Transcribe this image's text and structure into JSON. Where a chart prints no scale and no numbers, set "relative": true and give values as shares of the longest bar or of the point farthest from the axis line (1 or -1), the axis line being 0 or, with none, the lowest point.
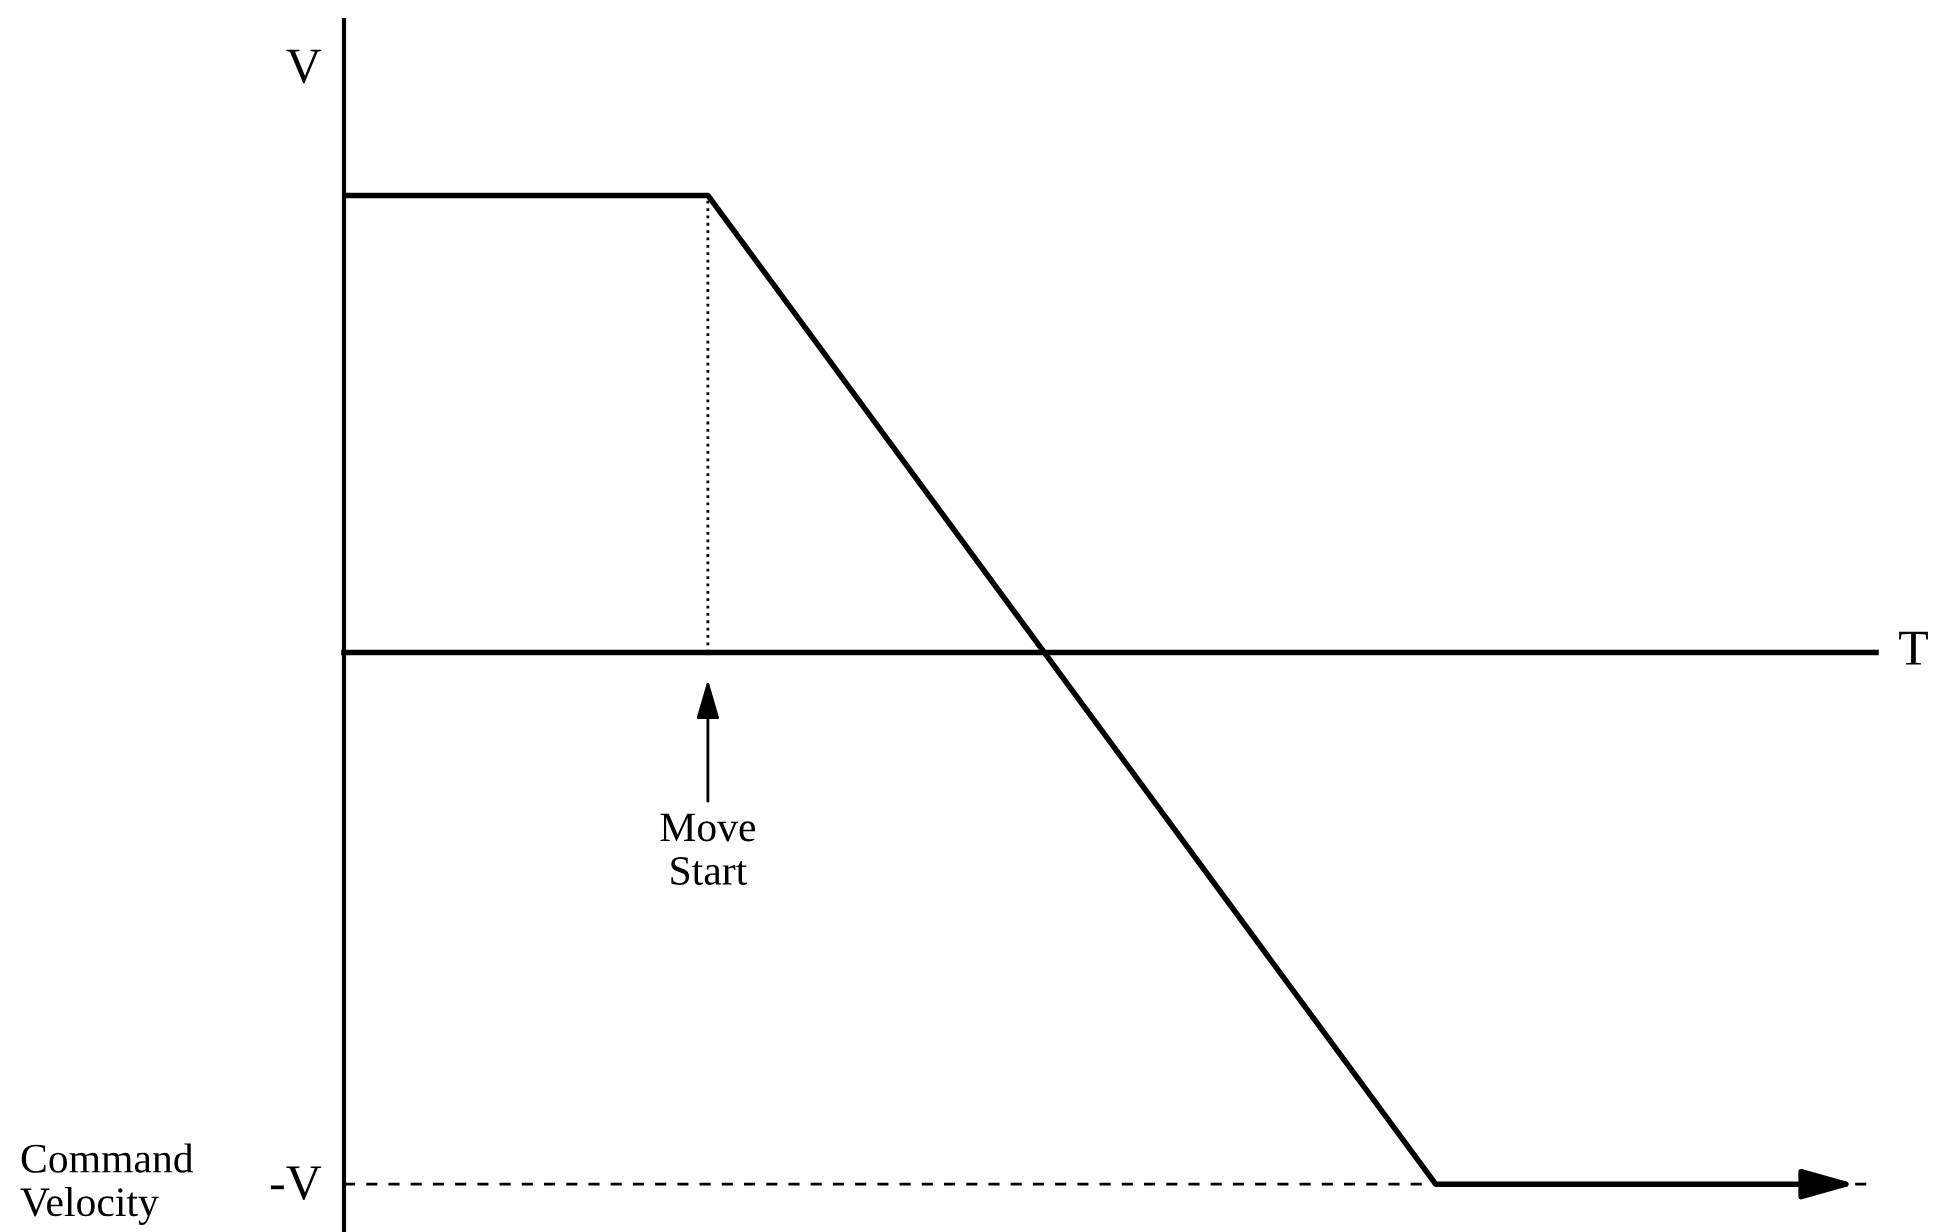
{
  "chart_data": {
    "type": "line",
    "relative": true,
    "categories": [
      null,
      null,
      null,
      null,
      null
    ],
    "series": [
      {
        "color": "#000000",
        "values": [
          0.86,
          0.86,
          -0.07,
          -1,
          -1
        ]
      }
    ],
    "ref_lines": [
      {
        "axis": "y",
        "value": -1,
        "label": "Command\nVelocity",
        "line_style": "dashed",
        "color": "#000000"
      }
    ],
    "annotations": [
      "V",
      "-V",
      "T",
      "Move\nStart"
    ],
    "marker": "none",
    "line_style": "solid",
    "legend": false
  }
}
